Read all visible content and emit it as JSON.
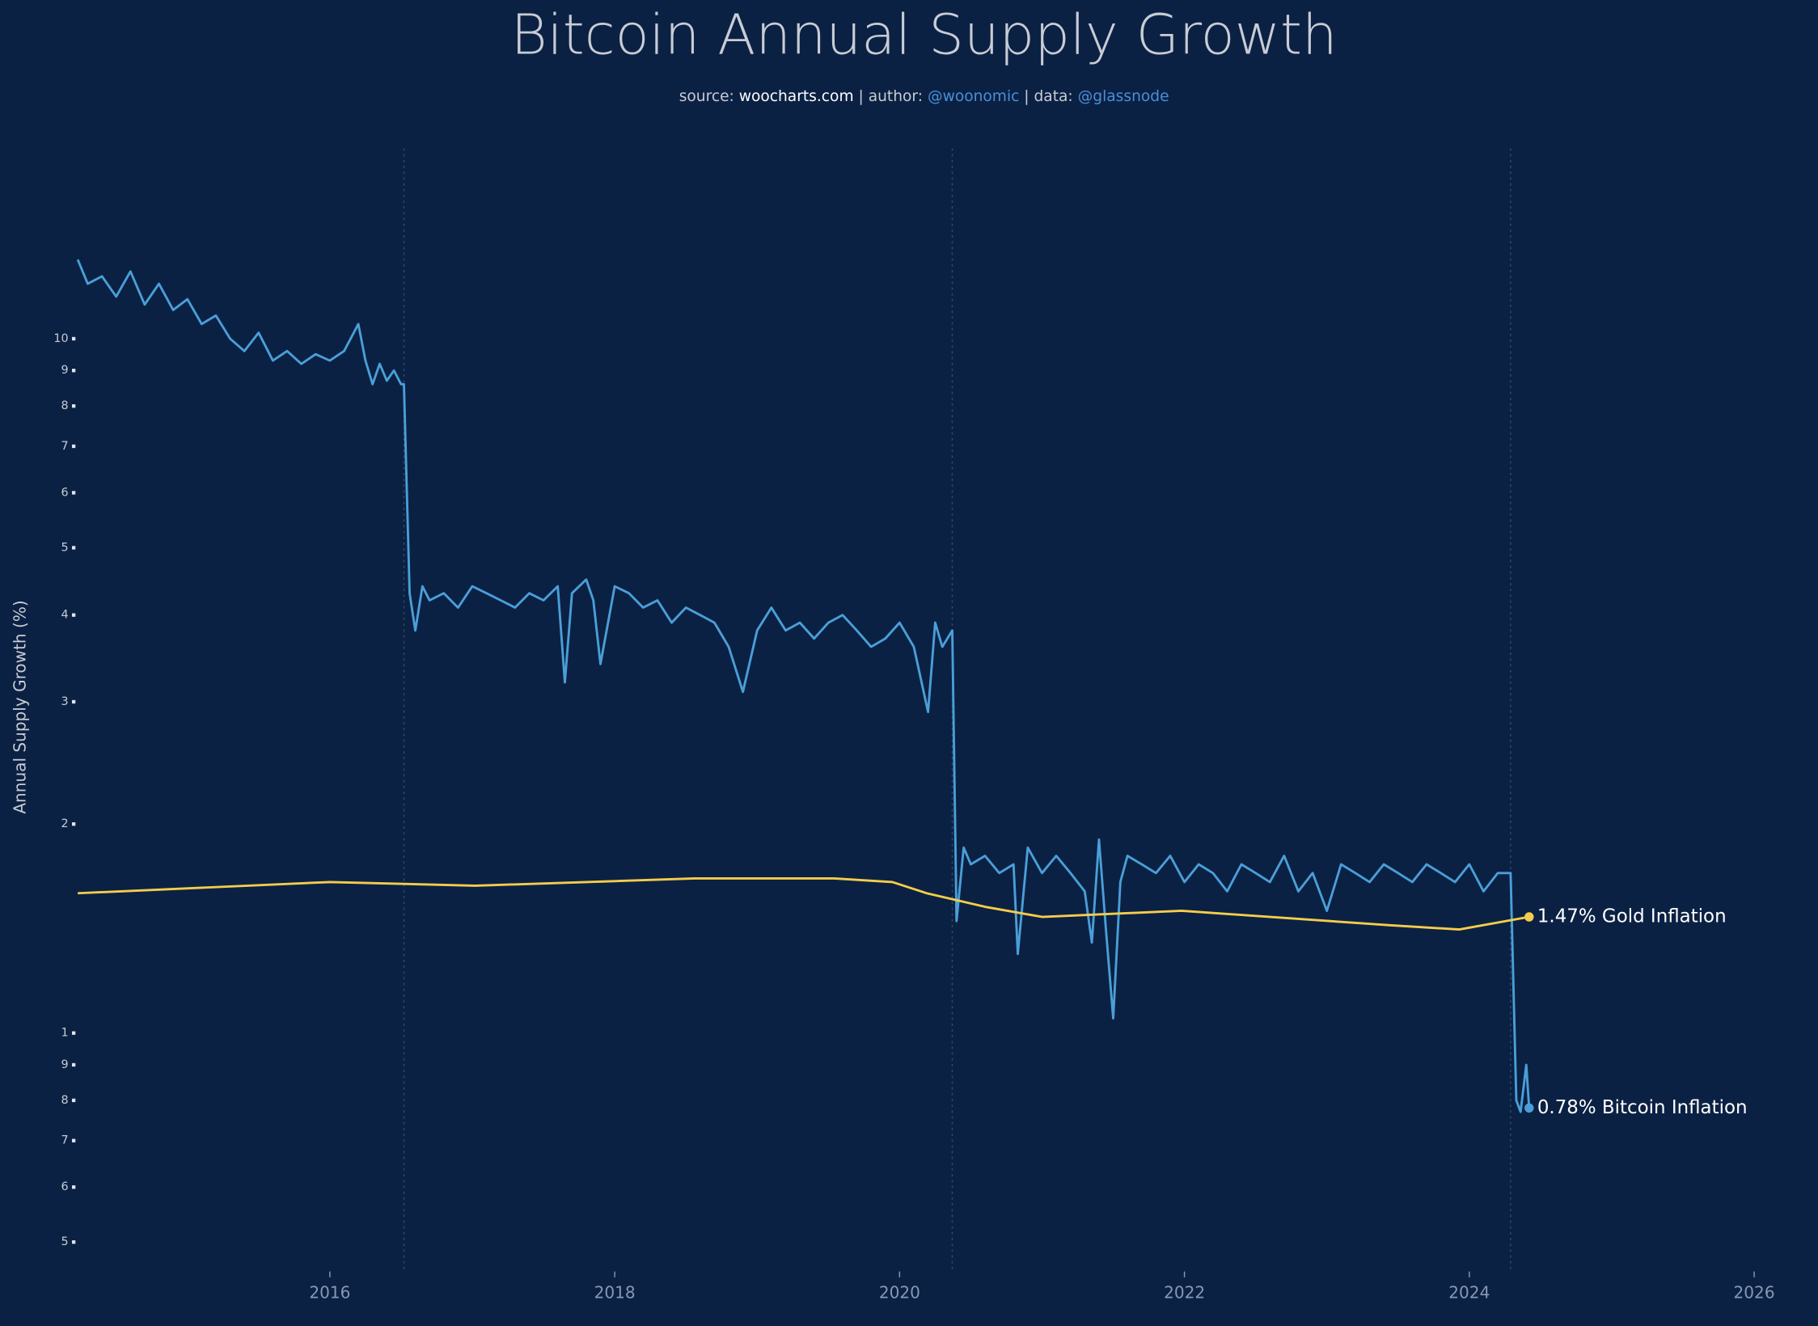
{
  "chart_data": {
    "type": "line",
    "title": "Bitcoin Annual Supply Growth",
    "subtitle": [
      {
        "text": "source: ",
        "color": "#c8ccd4"
      },
      {
        "text": "woocharts.com",
        "color": "#ffffff"
      },
      {
        "text": " | author: ",
        "color": "#c8ccd4"
      },
      {
        "text": "@woonomic",
        "color": "#4a8fd6"
      },
      {
        "text": " | data: ",
        "color": "#c8ccd4"
      },
      {
        "text": "@glassnode",
        "color": "#4a8fd6"
      }
    ],
    "y_label": "Annual Supply Growth (%)",
    "yscale": "log",
    "xlim": [
      2014.23,
      2026
    ],
    "xticks": [
      2016,
      2018,
      2020,
      2022,
      2024,
      2026
    ],
    "ylim": [
      0.457,
      18.8
    ],
    "yticks": [
      10,
      9,
      8,
      7,
      6,
      5,
      4,
      3,
      2,
      1,
      {
        "value": 0.9,
        "label": "9"
      },
      {
        "value": 0.8,
        "label": "8"
      },
      {
        "value": 0.7,
        "label": "7"
      },
      {
        "value": 0.6,
        "label": "6"
      },
      {
        "value": 0.5,
        "label": "5"
      }
    ],
    "halvings": [
      2016.52,
      2020.37,
      2024.29
    ],
    "series": [
      {
        "color": "#4a9fd8",
        "end_label": "0.78% Bitcoin Inflation",
        "x": [
          2014.23,
          2014.3,
          2014.4,
          2014.5,
          2014.6,
          2014.7,
          2014.8,
          2014.9,
          2015.0,
          2015.1,
          2015.2,
          2015.3,
          2015.4,
          2015.5,
          2015.6,
          2015.7,
          2015.8,
          2015.9,
          2016.0,
          2016.1,
          2016.2,
          2016.25,
          2016.3,
          2016.35,
          2016.4,
          2016.45,
          2016.5,
          2016.52,
          2016.56,
          2016.6,
          2016.65,
          2016.7,
          2016.8,
          2016.9,
          2017.0,
          2017.1,
          2017.2,
          2017.3,
          2017.4,
          2017.5,
          2017.6,
          2017.65,
          2017.7,
          2017.8,
          2017.85,
          2017.9,
          2018.0,
          2018.1,
          2018.2,
          2018.3,
          2018.4,
          2018.5,
          2018.6,
          2018.7,
          2018.8,
          2018.9,
          2019.0,
          2019.1,
          2019.2,
          2019.3,
          2019.4,
          2019.5,
          2019.6,
          2019.7,
          2019.8,
          2019.9,
          2020.0,
          2020.1,
          2020.2,
          2020.25,
          2020.3,
          2020.37,
          2020.4,
          2020.45,
          2020.5,
          2020.6,
          2020.7,
          2020.8,
          2020.83,
          2020.9,
          2021.0,
          2021.1,
          2021.2,
          2021.3,
          2021.35,
          2021.4,
          2021.45,
          2021.5,
          2021.55,
          2021.6,
          2021.7,
          2021.8,
          2021.9,
          2022.0,
          2022.1,
          2022.2,
          2022.3,
          2022.4,
          2022.5,
          2022.6,
          2022.7,
          2022.8,
          2022.9,
          2023.0,
          2023.1,
          2023.2,
          2023.3,
          2023.4,
          2023.5,
          2023.6,
          2023.7,
          2023.8,
          2023.9,
          2024.0,
          2024.1,
          2024.2,
          2024.29,
          2024.33,
          2024.36,
          2024.4,
          2024.42
        ],
        "values": [
          13.0,
          12.0,
          12.3,
          11.5,
          12.5,
          11.2,
          12.0,
          11.0,
          11.4,
          10.5,
          10.8,
          10.0,
          9.6,
          10.2,
          9.3,
          9.6,
          9.2,
          9.5,
          9.3,
          9.6,
          10.5,
          9.3,
          8.6,
          9.2,
          8.7,
          9.0,
          8.6,
          8.6,
          4.3,
          3.8,
          4.4,
          4.2,
          4.3,
          4.1,
          4.4,
          4.3,
          4.2,
          4.1,
          4.3,
          4.2,
          4.4,
          3.2,
          4.3,
          4.5,
          4.2,
          3.4,
          4.4,
          4.3,
          4.1,
          4.2,
          3.9,
          4.1,
          4.0,
          3.9,
          3.6,
          3.1,
          3.8,
          4.1,
          3.8,
          3.9,
          3.7,
          3.9,
          4.0,
          3.8,
          3.6,
          3.7,
          3.9,
          3.6,
          2.9,
          3.9,
          3.6,
          3.8,
          1.45,
          1.85,
          1.75,
          1.8,
          1.7,
          1.75,
          1.3,
          1.85,
          1.7,
          1.8,
          1.7,
          1.6,
          1.35,
          1.9,
          1.4,
          1.05,
          1.65,
          1.8,
          1.75,
          1.7,
          1.8,
          1.65,
          1.75,
          1.7,
          1.6,
          1.75,
          1.7,
          1.65,
          1.8,
          1.6,
          1.7,
          1.5,
          1.75,
          1.7,
          1.65,
          1.75,
          1.7,
          1.65,
          1.75,
          1.7,
          1.65,
          1.75,
          1.6,
          1.7,
          1.7,
          0.8,
          0.77,
          0.9,
          0.78
        ]
      },
      {
        "color": "#f5cd4b",
        "end_label": "1.47% Gold Inflation",
        "x": [
          2014.23,
          2016.0,
          2017.02,
          2018.56,
          2019.54,
          2019.95,
          2020.19,
          2020.6,
          2021.0,
          2021.98,
          2023.44,
          2023.93,
          2024.42
        ],
        "values": [
          1.59,
          1.65,
          1.63,
          1.67,
          1.67,
          1.65,
          1.59,
          1.52,
          1.47,
          1.5,
          1.43,
          1.41,
          1.47
        ]
      }
    ]
  }
}
